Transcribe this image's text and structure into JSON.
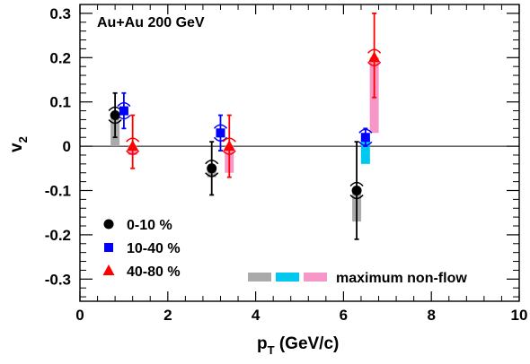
{
  "chart_data": {
    "type": "scatter",
    "annotation": "Au+Au 200 GeV",
    "xlabel_main": "p",
    "xlabel_sub": "T",
    "xlabel_unit": " (GeV/c)",
    "ylabel_main": "v",
    "ylabel_sub": "2",
    "xlim": [
      0,
      10
    ],
    "ylim": [
      -0.35,
      0.32
    ],
    "x_ticks": [
      0,
      2,
      4,
      6,
      8,
      10
    ],
    "x_tick_labels": [
      "0",
      "2",
      "4",
      "6",
      "8",
      "10"
    ],
    "y_ticks": [
      -0.3,
      -0.2,
      -0.1,
      0,
      0.1,
      0.2,
      0.3
    ],
    "y_tick_labels": [
      "-0.3",
      "-0.2",
      "-0.1",
      "0",
      "0.1",
      "0.2",
      "0.3"
    ],
    "zero_line": true,
    "legend_position": "bottom-left",
    "series": [
      {
        "name": "0-10 %",
        "marker": "circle",
        "color": "#000000",
        "nonflow_color": "#aaaaaa",
        "points": [
          {
            "x": 0.8,
            "y": 0.07,
            "err_low": 0.05,
            "err_high": 0.05,
            "nonflow_low": 0.0
          },
          {
            "x": 3.0,
            "y": -0.05,
            "err_low": 0.06,
            "err_high": 0.06,
            "nonflow_low": -0.07
          },
          {
            "x": 6.3,
            "y": -0.1,
            "err_low": 0.11,
            "err_high": 0.11,
            "nonflow_low": -0.17
          }
        ]
      },
      {
        "name": "10-40 %",
        "marker": "square",
        "color": "#0000ff",
        "nonflow_color": "#00c8f0",
        "points": [
          {
            "x": 1.0,
            "y": 0.08,
            "err_low": 0.04,
            "err_high": 0.04,
            "nonflow_low": 0.07
          },
          {
            "x": 3.2,
            "y": 0.03,
            "err_low": 0.04,
            "err_high": 0.04,
            "nonflow_low": 0.02
          },
          {
            "x": 6.5,
            "y": 0.02,
            "err_low": 0.02,
            "err_high": 0.02,
            "nonflow_low": -0.04
          }
        ]
      },
      {
        "name": "40-80 %",
        "marker": "triangle",
        "color": "#ff0000",
        "nonflow_color": "#f598c8",
        "points": [
          {
            "x": 1.2,
            "y": 0.0,
            "err_low": 0.05,
            "err_high": 0.07,
            "nonflow_low": -0.02
          },
          {
            "x": 3.4,
            "y": 0.0,
            "err_low": 0.07,
            "err_high": 0.07,
            "nonflow_low": -0.06
          },
          {
            "x": 6.7,
            "y": 0.2,
            "err_low": 0.09,
            "err_high": 0.1,
            "nonflow_low": 0.03
          }
        ]
      }
    ],
    "nonflow_legend_label": "maximum non-flow"
  }
}
